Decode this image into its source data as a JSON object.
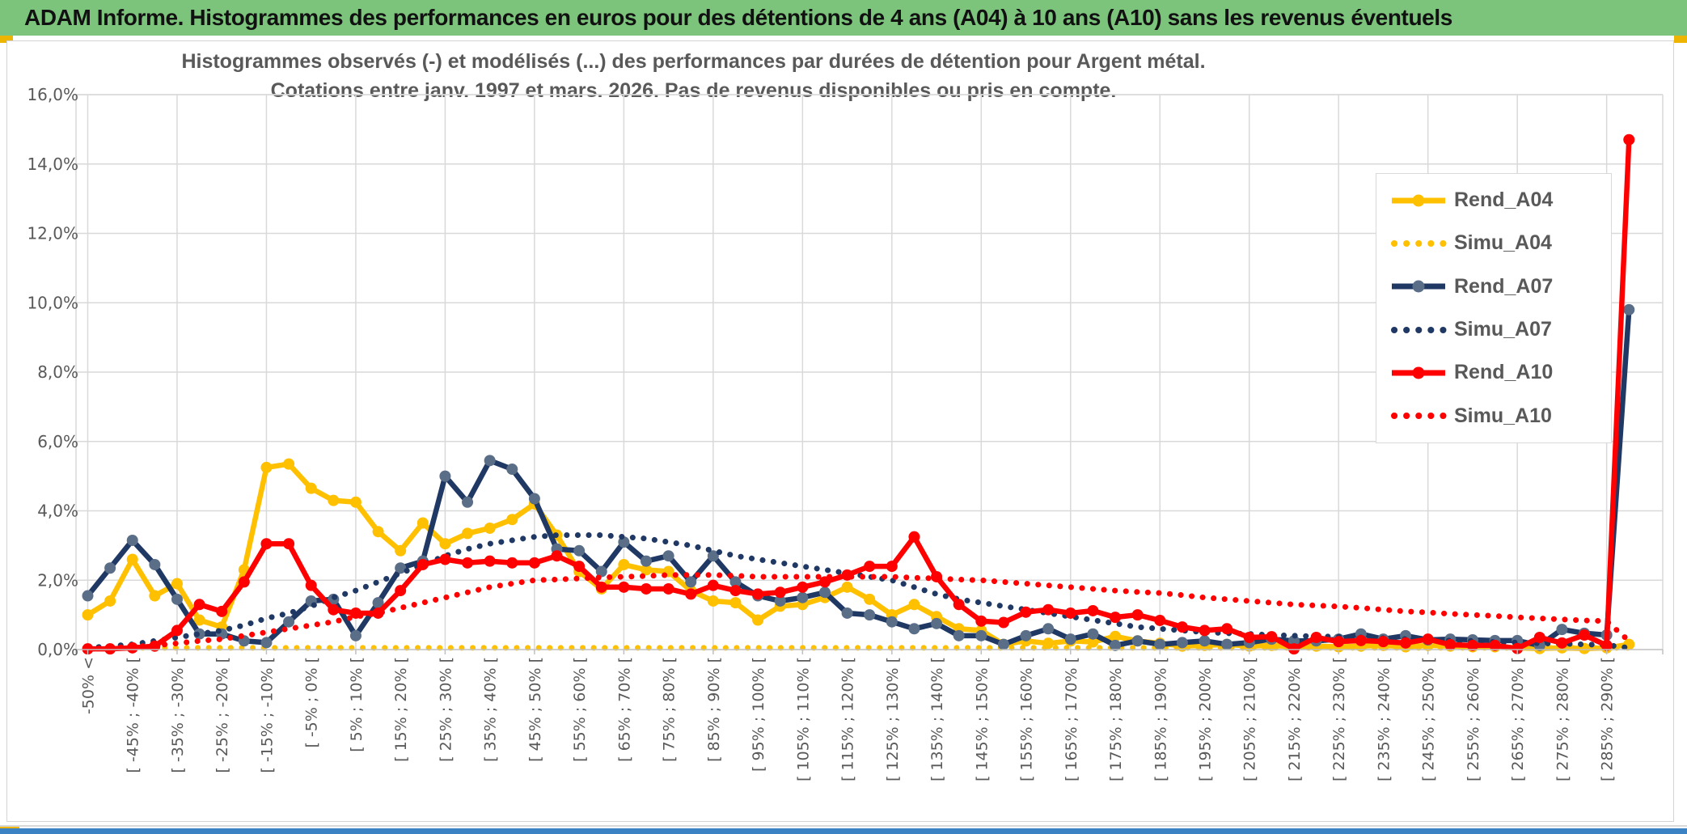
{
  "header": {
    "title": "ADAM Informe. Histogrammes des performances en euros pour des détentions de 4 ans (A04) à 10 ans (A10) sans les revenus éventuels",
    "background": "#7CC47C"
  },
  "accents": {
    "gold": "#EDB400",
    "footer_bar_blue": "#3B82C4",
    "grid": "#D9D9D9",
    "axis": "#BFBFBF",
    "text_gray": "#595959"
  },
  "chart_data": {
    "type": "line",
    "title_line1": "Histogrammes observés (-) et modélisés (...) des performances par durées de détention pour Argent métal.",
    "title_line2": "Cotations entre janv. 1997 et mars. 2026. Pas de revenus disponibles ou pris en compte.",
    "y_unit": "%",
    "ylim": [
      0,
      16
    ],
    "y_tick_step": 2,
    "y_ticks": [
      "0,0%",
      "2,0%",
      "4,0%",
      "6,0%",
      "8,0%",
      "10,0%",
      "12,0%",
      "14,0%",
      "16,0%"
    ],
    "grid": true,
    "legend_position": "inside-right",
    "x_bins_per_tick": 2,
    "x_tick_labels": [
      "-50% <",
      "[ -45% ; -40% [",
      "[ -35% ; -30% [",
      "[ -25% ; -20% [",
      "[ -15% ; -10% [",
      "[ -5% ; 0% [",
      "[ 5% ; 10% [",
      "[ 15% ; 20% [",
      "[ 25% ; 30% [",
      "[ 35% ; 40% [",
      "[ 45% ; 50% [",
      "[ 55% ; 60% [",
      "[ 65% ; 70% [",
      "[ 75% ; 80% [",
      "[ 85% ; 90% [",
      "[ 95% ; 100% [",
      "[ 105% ; 110% [",
      "[ 115% ; 120% [",
      "[ 125% ; 130% [",
      "[ 135% ; 140% [",
      "[ 145% ; 150% [",
      "[ 155% ; 160% [",
      "[ 165% ; 170% [",
      "[ 175% ; 180% [",
      "[ 185% ; 190% [",
      "[ 195% ; 200% [",
      "[ 205% ; 210% [",
      "[ 215% ; 220% [",
      "[ 225% ; 230% [",
      "[ 235% ; 240% [",
      "[ 245% ; 250% [",
      "[ 255% ; 260% [",
      "[ 265% ; 270% [",
      "[ 275% ; 280% [",
      "[ 285% ; 290% ["
    ],
    "series": [
      {
        "name": "Rend_A04",
        "style": "solid",
        "color": "#FFC000",
        "marker_color": "#FFC000",
        "values": [
          1.0,
          1.4,
          2.6,
          1.55,
          1.9,
          0.85,
          0.65,
          2.3,
          5.25,
          5.35,
          4.65,
          4.3,
          4.25,
          3.4,
          2.85,
          3.65,
          3.05,
          3.35,
          3.5,
          3.75,
          4.2,
          3.3,
          2.25,
          1.75,
          2.45,
          2.3,
          2.25,
          1.7,
          1.4,
          1.35,
          0.85,
          1.25,
          1.3,
          1.5,
          1.8,
          1.45,
          1.0,
          1.3,
          0.95,
          0.6,
          0.55,
          0.15,
          0.25,
          0.18,
          0.25,
          0.22,
          0.38,
          0.25,
          0.18,
          0.1,
          0.12,
          0.15,
          0.1,
          0.12,
          0.08,
          0.1,
          0.08,
          0.1,
          0.12,
          0.08,
          0.12,
          0.1,
          0.08,
          0.08,
          0.05,
          0.03,
          0.05,
          0.03,
          0.05,
          0.15
        ]
      },
      {
        "name": "Simu_A04",
        "style": "dotted",
        "color": "#FFC000",
        "values": [
          0.05,
          0.05,
          0.05,
          0.05,
          0.05,
          0.05,
          0.05,
          0.05,
          0.05,
          0.05,
          0.05,
          0.05,
          0.05,
          0.05,
          0.05,
          0.05,
          0.05,
          0.05,
          0.05,
          0.05,
          0.05,
          0.05,
          0.05,
          0.05,
          0.05,
          0.05,
          0.05,
          0.05,
          0.05,
          0.05,
          0.05,
          0.05,
          0.05,
          0.05,
          0.05,
          0.05,
          0.05,
          0.05,
          0.05,
          0.05,
          0.05,
          0.05,
          0.05,
          0.05,
          0.05,
          0.05,
          0.05,
          0.05,
          0.05,
          0.05,
          0.05,
          0.05,
          0.05,
          0.05,
          0.05,
          0.05,
          0.05,
          0.05,
          0.05,
          0.05,
          0.05,
          0.05,
          0.05,
          0.05,
          0.05,
          0.05,
          0.05,
          0.05,
          0.05,
          0.05
        ]
      },
      {
        "name": "Rend_A07",
        "style": "solid",
        "color": "#1F3864",
        "marker_color": "#5B6E87",
        "values": [
          1.55,
          2.35,
          3.15,
          2.45,
          1.45,
          0.45,
          0.45,
          0.25,
          0.2,
          0.8,
          1.4,
          1.45,
          0.4,
          1.35,
          2.35,
          2.55,
          5.0,
          4.25,
          5.45,
          5.2,
          4.35,
          2.9,
          2.85,
          2.25,
          3.1,
          2.55,
          2.7,
          1.95,
          2.7,
          1.95,
          1.55,
          1.4,
          1.5,
          1.65,
          1.05,
          1.0,
          0.8,
          0.6,
          0.75,
          0.4,
          0.4,
          0.15,
          0.4,
          0.6,
          0.3,
          0.45,
          0.12,
          0.25,
          0.15,
          0.2,
          0.25,
          0.15,
          0.2,
          0.3,
          0.25,
          0.25,
          0.3,
          0.45,
          0.3,
          0.4,
          0.28,
          0.3,
          0.28,
          0.26,
          0.26,
          0.12,
          0.58,
          0.47,
          0.42,
          9.8
        ]
      },
      {
        "name": "Simu_A07",
        "style": "dotted",
        "color": "#1F3864",
        "values": [
          0.05,
          0.1,
          0.15,
          0.25,
          0.35,
          0.45,
          0.55,
          0.7,
          0.9,
          1.05,
          1.25,
          1.5,
          1.7,
          1.95,
          2.2,
          2.45,
          2.7,
          2.9,
          3.05,
          3.15,
          3.25,
          3.3,
          3.3,
          3.3,
          3.25,
          3.2,
          3.1,
          3.0,
          2.85,
          2.7,
          2.6,
          2.5,
          2.4,
          2.3,
          2.2,
          2.1,
          2.0,
          1.8,
          1.6,
          1.45,
          1.35,
          1.25,
          1.15,
          1.05,
          0.95,
          0.85,
          0.75,
          0.65,
          0.6,
          0.55,
          0.5,
          0.47,
          0.45,
          0.42,
          0.4,
          0.38,
          0.37,
          0.35,
          0.33,
          0.3,
          0.28,
          0.26,
          0.25,
          0.22,
          0.2,
          0.18,
          0.17,
          0.15,
          0.13,
          0.05
        ]
      },
      {
        "name": "Rend_A10",
        "style": "solid",
        "color": "#FF0000",
        "marker_color": "#FF0000",
        "values": [
          0.02,
          0.02,
          0.05,
          0.1,
          0.55,
          1.3,
          1.1,
          1.95,
          3.05,
          3.05,
          1.85,
          1.15,
          1.05,
          1.05,
          1.7,
          2.45,
          2.6,
          2.5,
          2.55,
          2.5,
          2.5,
          2.7,
          2.4,
          1.8,
          1.8,
          1.75,
          1.75,
          1.6,
          1.85,
          1.7,
          1.6,
          1.65,
          1.8,
          1.95,
          2.15,
          2.4,
          2.4,
          3.25,
          2.1,
          1.3,
          0.82,
          0.78,
          1.08,
          1.15,
          1.05,
          1.12,
          0.93,
          1.0,
          0.84,
          0.65,
          0.55,
          0.6,
          0.35,
          0.37,
          0.02,
          0.35,
          0.23,
          0.26,
          0.23,
          0.19,
          0.3,
          0.14,
          0.12,
          0.12,
          0.03,
          0.35,
          0.19,
          0.42,
          0.12,
          14.7
        ]
      },
      {
        "name": "Simu_A10",
        "style": "dotted",
        "color": "#FF0000",
        "values": [
          0.02,
          0.05,
          0.08,
          0.12,
          0.18,
          0.25,
          0.3,
          0.4,
          0.5,
          0.6,
          0.7,
          0.8,
          0.95,
          1.05,
          1.2,
          1.35,
          1.5,
          1.65,
          1.8,
          1.9,
          2.0,
          2.02,
          2.05,
          2.08,
          2.1,
          2.12,
          2.15,
          2.15,
          2.15,
          2.13,
          2.1,
          2.1,
          2.1,
          2.1,
          2.1,
          2.1,
          2.1,
          2.07,
          2.05,
          2.02,
          2.0,
          1.95,
          1.9,
          1.85,
          1.8,
          1.75,
          1.7,
          1.66,
          1.63,
          1.57,
          1.5,
          1.45,
          1.4,
          1.35,
          1.3,
          1.27,
          1.24,
          1.2,
          1.15,
          1.1,
          1.07,
          1.03,
          1.0,
          0.97,
          0.93,
          0.9,
          0.87,
          0.84,
          0.82,
          0.25
        ]
      }
    ]
  }
}
